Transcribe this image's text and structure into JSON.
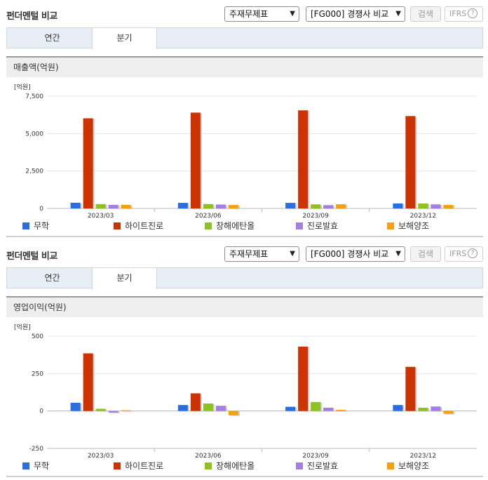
{
  "panels": [
    {
      "title": "펀더멘털 비교",
      "select1": "주재무제표",
      "select2": "[FG000] 경쟁사 비교",
      "search_label": "검색",
      "ifrs_label": "IFRS",
      "ifrs_help": "?",
      "tabs": [
        "연간",
        "분기"
      ],
      "active_tab": 1,
      "subheading": "매출액(억원)"
    },
    {
      "title": "펀더멘털 비교",
      "select1": "주재무제표",
      "select2": "[FG000] 경쟁사 비교",
      "search_label": "검색",
      "ifrs_label": "IFRS",
      "ifrs_help": "?",
      "tabs": [
        "연간",
        "분기"
      ],
      "active_tab": 1,
      "subheading": "영업이익(억원)"
    }
  ],
  "legend": [
    "무학",
    "하이트진로",
    "창해에탄올",
    "진로발효",
    "보해양조"
  ],
  "colors": [
    "#2a6ee0",
    "#cc3300",
    "#8dc21f",
    "#a47fe0",
    "#f5a011"
  ],
  "chart_data": [
    {
      "type": "bar",
      "unit_label": "[억원]",
      "categories": [
        "2023/03",
        "2023/06",
        "2023/09",
        "2023/12"
      ],
      "ylim": [
        0,
        7500
      ],
      "yticks": [
        0,
        2500,
        5000,
        7500
      ],
      "ytick_labels": [
        "0",
        "2,500",
        "5,000",
        "7,500"
      ],
      "series": [
        {
          "name": "무학",
          "values": [
            380,
            370,
            370,
            330
          ]
        },
        {
          "name": "하이트진로",
          "values": [
            6020,
            6400,
            6550,
            6170
          ]
        },
        {
          "name": "창해에탄올",
          "values": [
            290,
            290,
            270,
            330
          ]
        },
        {
          "name": "진로발효",
          "values": [
            240,
            260,
            220,
            270
          ]
        },
        {
          "name": "보해양조",
          "values": [
            240,
            230,
            280,
            230
          ]
        }
      ]
    },
    {
      "type": "bar",
      "unit_label": "[억원]",
      "categories": [
        "2023/03",
        "2023/06",
        "2023/09",
        "2023/12"
      ],
      "ylim": [
        -250,
        500
      ],
      "yticks": [
        -250,
        0,
        250,
        500
      ],
      "ytick_labels": [
        "-250",
        "0",
        "250",
        "500"
      ],
      "series": [
        {
          "name": "무학",
          "values": [
            55,
            40,
            28,
            40
          ]
        },
        {
          "name": "하이트진로",
          "values": [
            385,
            118,
            430,
            295
          ]
        },
        {
          "name": "창해에탄올",
          "values": [
            15,
            50,
            60,
            22
          ]
        },
        {
          "name": "진로발효",
          "values": [
            -10,
            35,
            22,
            30
          ]
        },
        {
          "name": "보해양조",
          "values": [
            5,
            -28,
            8,
            -18
          ]
        }
      ]
    }
  ]
}
